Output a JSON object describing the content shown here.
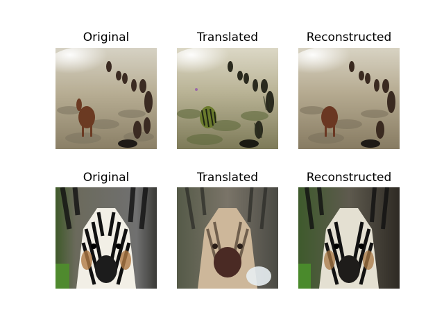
{
  "figure": {
    "rows": [
      {
        "subject": "horses",
        "panels": [
          {
            "title": "Original",
            "kind": "horse-original"
          },
          {
            "title": "Translated",
            "kind": "horse-translated"
          },
          {
            "title": "Reconstructed",
            "kind": "horse-reconstructed"
          }
        ]
      },
      {
        "subject": "zebra",
        "panels": [
          {
            "title": "Original",
            "kind": "zebra-original"
          },
          {
            "title": "Translated",
            "kind": "zebra-translated"
          },
          {
            "title": "Reconstructed",
            "kind": "zebra-reconstructed"
          }
        ]
      }
    ]
  }
}
